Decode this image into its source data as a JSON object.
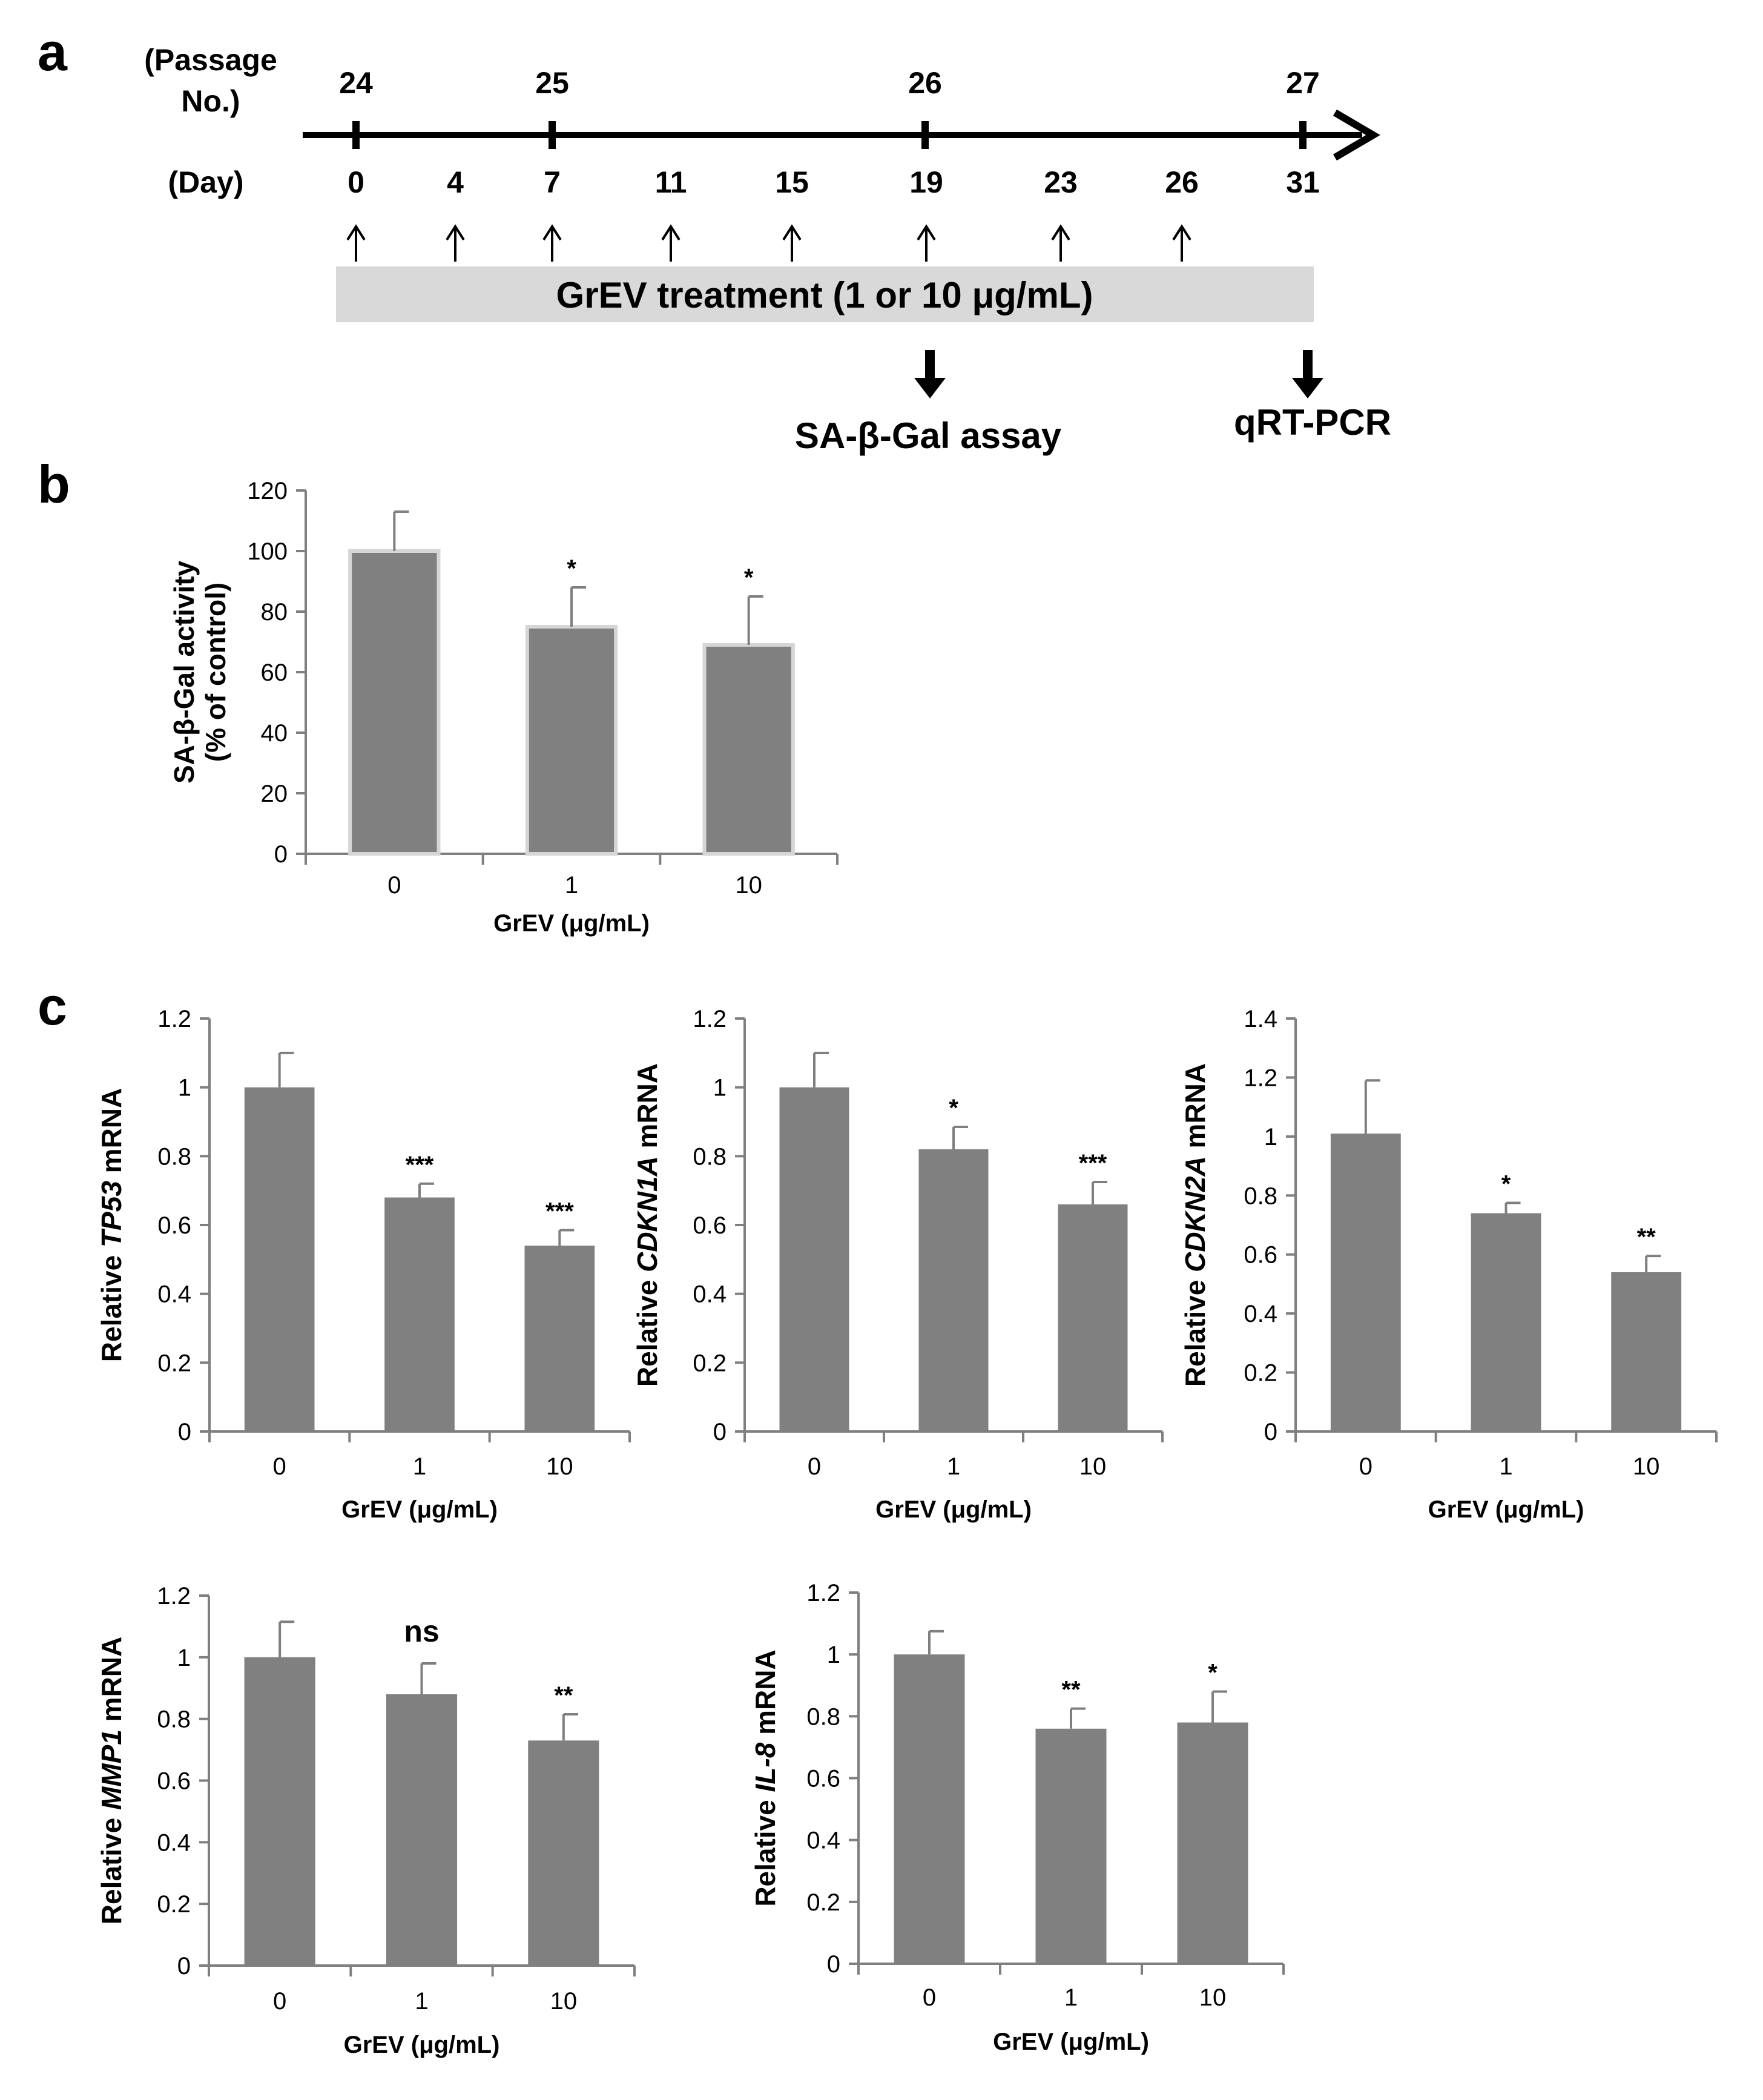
{
  "panel_a": {
    "letter": "a",
    "passage_label_line1": "(Passage",
    "passage_label_line2": "No.)",
    "day_label": "(Day)",
    "passages": [
      "24",
      "25",
      "26",
      "27"
    ],
    "days": [
      "0",
      "4",
      "7",
      "11",
      "15",
      "19",
      "23",
      "26",
      "31"
    ],
    "treatment_label": "GrEV treatment (1 or 10 μg/mL)",
    "assay_label": "SA-β-Gal assay",
    "pcr_label": "qRT-PCR"
  },
  "panel_b": {
    "letter": "b"
  },
  "panel_c": {
    "letter": "c"
  },
  "colors": {
    "bar": "#808080",
    "bar_outline_b": "#d6d6d6",
    "axis": "#7f7f7f",
    "text": "#000000"
  },
  "chart_data": [
    {
      "id": "b",
      "type": "bar",
      "title": "",
      "categories": [
        "0",
        "1",
        "10"
      ],
      "values": [
        100,
        75,
        69
      ],
      "errors": [
        13,
        13,
        16
      ],
      "annotations": [
        "",
        "*",
        "*"
      ],
      "xlabel": "GrEV (μg/mL)",
      "ylabel_lines": [
        "SA-β-Gal activity",
        "(% of control)"
      ],
      "ylim": [
        0,
        120
      ],
      "yticks": [
        0,
        20,
        40,
        60,
        80,
        100,
        120
      ],
      "ytick_labels": [
        "0",
        "20",
        "40",
        "60",
        "80",
        "100",
        "120"
      ]
    },
    {
      "id": "tp53",
      "type": "bar",
      "categories": [
        "0",
        "1",
        "10"
      ],
      "values": [
        1.0,
        0.68,
        0.54
      ],
      "errors": [
        0.1,
        0.04,
        0.045
      ],
      "annotations": [
        "",
        "***",
        "***"
      ],
      "xlabel": "GrEV (μg/mL)",
      "ylabel_prefix": "Relative ",
      "ylabel_gene": "TP53",
      "ylabel_suffix": " mRNA",
      "ylim": [
        0,
        1.2
      ],
      "yticks": [
        0,
        0.2,
        0.4,
        0.6,
        0.8,
        1,
        1.2
      ],
      "ytick_labels": [
        "0",
        "0.2",
        "0.4",
        "0.6",
        "0.8",
        "1",
        "1.2"
      ]
    },
    {
      "id": "cdkn1a",
      "type": "bar",
      "categories": [
        "0",
        "1",
        "10"
      ],
      "values": [
        1.0,
        0.82,
        0.66
      ],
      "errors": [
        0.1,
        0.065,
        0.065
      ],
      "annotations": [
        "",
        "*",
        "***"
      ],
      "xlabel": "GrEV (μg/mL)",
      "ylabel_prefix": "Relative ",
      "ylabel_gene": "CDKN1A",
      "ylabel_suffix": " mRNA",
      "ylim": [
        0,
        1.2
      ],
      "yticks": [
        0,
        0.2,
        0.4,
        0.6,
        0.8,
        1,
        1.2
      ],
      "ytick_labels": [
        "0",
        "0.2",
        "0.4",
        "0.6",
        "0.8",
        "1",
        "1.2"
      ]
    },
    {
      "id": "cdkn2a",
      "type": "bar",
      "categories": [
        "0",
        "1",
        "10"
      ],
      "values": [
        1.01,
        0.74,
        0.54
      ],
      "errors": [
        0.18,
        0.035,
        0.055
      ],
      "annotations": [
        "",
        "*",
        "**"
      ],
      "xlabel": "GrEV (μg/mL)",
      "ylabel_prefix": "Relative ",
      "ylabel_gene": "CDKN2A",
      "ylabel_suffix": " mRNA",
      "ylim": [
        0,
        1.4
      ],
      "yticks": [
        0,
        0.2,
        0.4,
        0.6,
        0.8,
        1,
        1.2,
        1.4
      ],
      "ytick_labels": [
        "0",
        "0.2",
        "0.4",
        "0.6",
        "0.8",
        "1",
        "1.2",
        "1.4"
      ]
    },
    {
      "id": "mmp1",
      "type": "bar",
      "categories": [
        "0",
        "1",
        "10"
      ],
      "values": [
        1.0,
        0.88,
        0.73
      ],
      "errors": [
        0.115,
        0.1,
        0.085
      ],
      "annotations": [
        "",
        "ns",
        "**"
      ],
      "xlabel": "GrEV (μg/mL)",
      "ylabel_prefix": "Relative ",
      "ylabel_gene": "MMP1",
      "ylabel_suffix": " mRNA",
      "ylim": [
        0,
        1.2
      ],
      "yticks": [
        0,
        0.2,
        0.4,
        0.6,
        0.8,
        1,
        1.2
      ],
      "ytick_labels": [
        "0",
        "0.2",
        "0.4",
        "0.6",
        "0.8",
        "1",
        "1.2"
      ]
    },
    {
      "id": "il8",
      "type": "bar",
      "categories": [
        "0",
        "1",
        "10"
      ],
      "values": [
        1.0,
        0.76,
        0.78
      ],
      "errors": [
        0.075,
        0.065,
        0.1
      ],
      "annotations": [
        "",
        "**",
        "*"
      ],
      "xlabel": "GrEV (μg/mL)",
      "ylabel_prefix": "Relative ",
      "ylabel_gene": "IL-8",
      "ylabel_suffix": " mRNA",
      "ylim": [
        0,
        1.2
      ],
      "yticks": [
        0,
        0.2,
        0.4,
        0.6,
        0.8,
        1,
        1.2
      ],
      "ytick_labels": [
        "0",
        "0.2",
        "0.4",
        "0.6",
        "0.8",
        "1",
        "1.2"
      ]
    }
  ]
}
